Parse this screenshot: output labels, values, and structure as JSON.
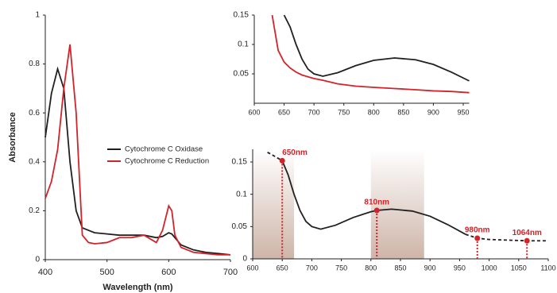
{
  "chart_data": [
    {
      "type": "line",
      "xlabel": "Wavelength (nm)",
      "ylabel": "Absorbance",
      "x": [
        400,
        410,
        420,
        430,
        440,
        450,
        460,
        470,
        480,
        500,
        520,
        540,
        560,
        580,
        590,
        600,
        605,
        610,
        620,
        640,
        660,
        680,
        700
      ],
      "series": [
        {
          "name": "Cytochrome C Oxidase",
          "color": "#231f20",
          "values": [
            0.5,
            0.68,
            0.78,
            0.7,
            0.4,
            0.2,
            0.13,
            0.12,
            0.11,
            0.105,
            0.1,
            0.1,
            0.1,
            0.09,
            0.095,
            0.11,
            0.105,
            0.09,
            0.06,
            0.04,
            0.03,
            0.025,
            0.02
          ]
        },
        {
          "name": "Cytochrome C Reduction",
          "color": "#d2232a",
          "values": [
            0.25,
            0.32,
            0.45,
            0.7,
            0.88,
            0.6,
            0.1,
            0.07,
            0.065,
            0.07,
            0.09,
            0.09,
            0.1,
            0.07,
            0.12,
            0.22,
            0.2,
            0.1,
            0.05,
            0.03,
            0.025,
            0.02,
            0.02
          ]
        }
      ],
      "xlim": [
        400,
        700
      ],
      "xticks": [
        400,
        500,
        600,
        700
      ],
      "ylim": [
        0,
        1
      ],
      "yticks": [
        0,
        0.2,
        0.4,
        0.6,
        0.8,
        1
      ],
      "legend": "center"
    },
    {
      "type": "line",
      "x": [
        630,
        640,
        650,
        660,
        670,
        680,
        690,
        700,
        715,
        740,
        770,
        800,
        835,
        870,
        900,
        930,
        960
      ],
      "series": [
        {
          "color": "#231f20",
          "values": [
            null,
            null,
            0.15,
            0.13,
            0.1,
            0.075,
            0.058,
            0.05,
            0.046,
            0.052,
            0.064,
            0.073,
            0.077,
            0.074,
            0.066,
            0.053,
            0.038
          ]
        },
        {
          "color": "#d2232a",
          "values": [
            0.15,
            0.09,
            0.07,
            0.06,
            0.053,
            0.048,
            0.045,
            0.042,
            0.039,
            0.033,
            0.029,
            0.027,
            0.025,
            0.023,
            0.021,
            0.02,
            0.018
          ]
        }
      ],
      "xlim": [
        600,
        960
      ],
      "xticks": [
        600,
        650,
        700,
        750,
        800,
        850,
        900,
        950
      ],
      "ylim": [
        0,
        0.15
      ],
      "yticks": [
        0.05,
        0.1,
        0.15
      ]
    },
    {
      "type": "line",
      "series": [
        {
          "color": "#231f20",
          "dashed": true,
          "x": [
            625,
            635,
            650
          ],
          "values": [
            0.165,
            0.16,
            0.152
          ]
        },
        {
          "color": "#231f20",
          "dashed": false,
          "x": [
            650,
            660,
            670,
            680,
            690,
            700,
            715,
            740,
            770,
            800,
            810,
            835,
            870,
            900,
            930,
            960
          ],
          "values": [
            0.152,
            0.13,
            0.1,
            0.075,
            0.058,
            0.05,
            0.046,
            0.052,
            0.064,
            0.073,
            0.075,
            0.077,
            0.074,
            0.066,
            0.053,
            0.038
          ]
        },
        {
          "color": "#231f20",
          "dashed": true,
          "x": [
            960,
            980,
            1000,
            1064,
            1100
          ],
          "values": [
            0.038,
            0.032,
            0.03,
            0.028,
            0.028
          ]
        }
      ],
      "points": [
        {
          "x": 650,
          "value": 0.152,
          "label": "650nm"
        },
        {
          "x": 810,
          "value": 0.075,
          "label": "810nm"
        },
        {
          "x": 980,
          "value": 0.032,
          "label": "980nm"
        },
        {
          "x": 1064,
          "value": 0.028,
          "label": "1064nm"
        }
      ],
      "point_color": "#d2232a",
      "shaded_ranges": [
        [
          600,
          670
        ],
        [
          800,
          890
        ]
      ],
      "xlim": [
        600,
        1100
      ],
      "xticks": [
        600,
        650,
        700,
        750,
        800,
        850,
        900,
        950,
        1000,
        1050,
        1100
      ],
      "ylim": [
        0,
        0.15
      ],
      "yticks": [
        0,
        0.05,
        0.1,
        0.15
      ]
    }
  ]
}
